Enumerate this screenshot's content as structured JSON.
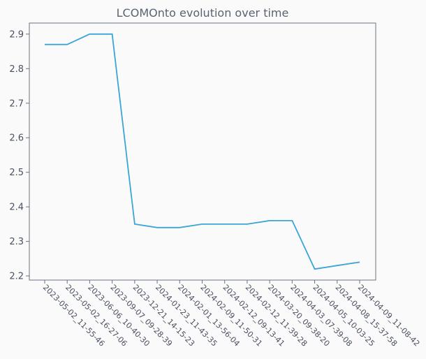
{
  "chart_data": {
    "type": "line",
    "title": "LCOMOnto evolution over time",
    "xlabel": "",
    "ylabel": "",
    "categories": [
      "2023-05-02_11-55-46",
      "2023-05-02_16-27-06",
      "2023-06-06_10-40-30",
      "2023-09-07_09-28-39",
      "2023-12-21_14-15-23",
      "2024-01-23_11-43-35",
      "2024-02-01_13-56-04",
      "2024-02-09_11-50-31",
      "2024-02-12_09-13-41",
      "2024-02-12_11-39-28",
      "2024-03-20_09-38-20",
      "2024-04-03_07-39-08",
      "2024-04-05_10-03-25",
      "2024-04-08_15-37-58",
      "2024-04-09_11-08-42"
    ],
    "values": [
      2.87,
      2.87,
      2.9,
      2.9,
      2.35,
      2.34,
      2.34,
      2.35,
      2.35,
      2.35,
      2.36,
      2.36,
      2.22,
      2.23,
      2.24
    ],
    "yticks": [
      "2.2",
      "2.3",
      "2.4",
      "2.5",
      "2.6",
      "2.7",
      "2.8",
      "2.9"
    ],
    "ylim": [
      2.188,
      2.932
    ],
    "grid": false,
    "line_color": "#3aa5d6",
    "axis_color": "#6b7280",
    "text_color": "#4a5160"
  }
}
